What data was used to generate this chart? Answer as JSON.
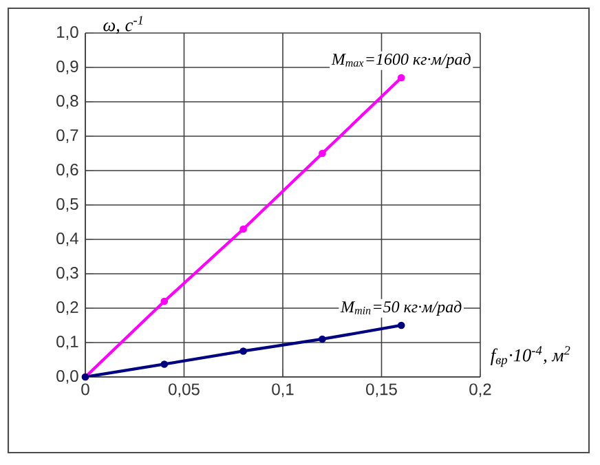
{
  "chart_data": {
    "type": "line",
    "xlabel": "f$_{вр}$·10$^{-4}$, м$^{2}$",
    "ylabel": "ω, с$^{-1}$",
    "x": [
      0,
      0.04,
      0.08,
      0.12,
      0.16
    ],
    "series": [
      {
        "name": "M$_{max}$=1600 кг·м/рад",
        "color": "#ff00ff",
        "values": [
          0,
          0.22,
          0.43,
          0.65,
          0.87
        ]
      },
      {
        "name": "M$_{min}$=50 кг·м/рад",
        "color": "#000080",
        "values": [
          0,
          0.037,
          0.075,
          0.11,
          0.15
        ]
      }
    ],
    "xlim": [
      0,
      0.2
    ],
    "ylim": [
      0,
      1
    ],
    "xticks": [
      {
        "value": 0,
        "label": "0"
      },
      {
        "value": 0.05,
        "label": "0,05"
      },
      {
        "value": 0.1,
        "label": "0,1"
      },
      {
        "value": 0.15,
        "label": "0,15"
      },
      {
        "value": 0.2,
        "label": "0,2"
      }
    ],
    "yticks": [
      {
        "value": 0,
        "label": "0,0"
      },
      {
        "value": 0.1,
        "label": "0,1"
      },
      {
        "value": 0.2,
        "label": "0,2"
      },
      {
        "value": 0.3,
        "label": "0,3"
      },
      {
        "value": 0.4,
        "label": "0,4"
      },
      {
        "value": 0.5,
        "label": "0,5"
      },
      {
        "value": 0.6,
        "label": "0,6"
      },
      {
        "value": 0.7,
        "label": "0,7"
      },
      {
        "value": 0.8,
        "label": "0,8"
      },
      {
        "value": 0.9,
        "label": "0,9"
      },
      {
        "value": 1,
        "label": "1,0"
      }
    ],
    "grid": true,
    "marker": "circle",
    "line_style": "solid"
  }
}
